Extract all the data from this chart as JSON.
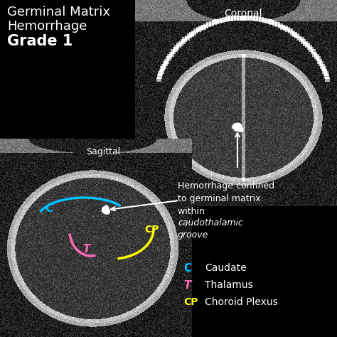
{
  "bg_color": "#000000",
  "title_line1": "Germinal Matrix",
  "title_line2": "Hemorrhage",
  "title_line3": "Grade 1",
  "title_color": "#ffffff",
  "title_fontsize": 13,
  "coronal_label": "Coronal",
  "sagittal_label": "Sagittal",
  "arc_C_color": "#00bfff",
  "arc_T_color": "#ff69b4",
  "arc_CP_color": "#ffff00",
  "white_color": "#ffffff",
  "text_fontsize": 9,
  "legend_fontsize": 9,
  "legend_C_label": "Caudate",
  "legend_T_label": "Thalamus",
  "legend_CP_label": "Choroid Plexus"
}
